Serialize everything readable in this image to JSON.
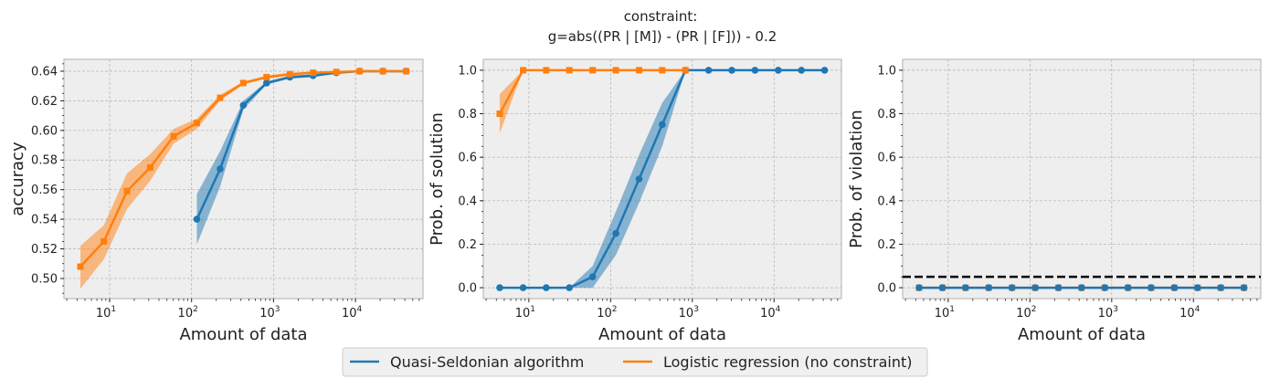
{
  "chart_data": [
    {
      "type": "line",
      "title": "",
      "xlabel": "Amount of data",
      "ylabel": "accuracy",
      "xscale": "log",
      "xlim": [
        2.77,
        66700
      ],
      "ylim": [
        0.4864,
        0.648
      ],
      "yticks": [
        0.5,
        0.52,
        0.54,
        0.56,
        0.58,
        0.6,
        0.62,
        0.64
      ],
      "ytick_labels": [
        "0.50",
        "0.52",
        "0.54",
        "0.56",
        "0.58",
        "0.60",
        "0.62",
        "0.64"
      ],
      "xticks": [
        10,
        100,
        1000,
        10000
      ],
      "xtick_labels": [
        {
          "base": "10",
          "exp": "1"
        },
        {
          "base": "10",
          "exp": "2"
        },
        {
          "base": "10",
          "exp": "3"
        },
        {
          "base": "10",
          "exp": "4"
        }
      ],
      "grid": true,
      "x": [
        4.4,
        8.5,
        16.3,
        31.3,
        60.3,
        116,
        223,
        428,
        823,
        1582,
        3040,
        5845,
        11240,
        21610,
        41550
      ],
      "series": [
        {
          "name": "Quasi-Seldonian algorithm",
          "color": "#1f77b4",
          "marker": "circle",
          "values": [
            null,
            null,
            null,
            null,
            null,
            0.54,
            0.574,
            0.617,
            0.632,
            0.636,
            0.637,
            0.639,
            0.64,
            0.64,
            0.64
          ],
          "lower": [
            null,
            null,
            null,
            null,
            null,
            0.523,
            0.562,
            0.614,
            0.631,
            0.635,
            0.636,
            0.6385,
            0.6395,
            0.6398,
            0.6398
          ],
          "upper": [
            null,
            null,
            null,
            null,
            null,
            0.557,
            0.586,
            0.62,
            0.633,
            0.637,
            0.638,
            0.6395,
            0.6405,
            0.6402,
            0.6402
          ]
        },
        {
          "name": "Logistic regression (no constraint)",
          "color": "#ff7f0e",
          "marker": "square",
          "values": [
            0.508,
            0.525,
            0.559,
            0.575,
            0.596,
            0.605,
            0.622,
            0.632,
            0.636,
            0.638,
            0.639,
            0.6395,
            0.64,
            0.64,
            0.64
          ],
          "lower": [
            0.493,
            0.513,
            0.547,
            0.566,
            0.591,
            0.601,
            0.62,
            0.631,
            0.635,
            0.637,
            0.6385,
            0.639,
            0.6397,
            0.6398,
            0.6398
          ],
          "upper": [
            0.522,
            0.536,
            0.571,
            0.584,
            0.601,
            0.608,
            0.624,
            0.633,
            0.637,
            0.639,
            0.6395,
            0.64,
            0.6403,
            0.6405,
            0.6405
          ]
        }
      ]
    },
    {
      "type": "line",
      "title": "",
      "xlabel": "Amount of data",
      "ylabel": "Prob. of solution",
      "xscale": "log",
      "xlim": [
        2.77,
        66700
      ],
      "ylim": [
        -0.05,
        1.05
      ],
      "yticks": [
        0.0,
        0.2,
        0.4,
        0.6,
        0.8,
        1.0
      ],
      "ytick_labels": [
        "0.0",
        "0.2",
        "0.4",
        "0.6",
        "0.8",
        "1.0"
      ],
      "xticks": [
        10,
        100,
        1000,
        10000
      ],
      "xtick_labels": [
        {
          "base": "10",
          "exp": "1"
        },
        {
          "base": "10",
          "exp": "2"
        },
        {
          "base": "10",
          "exp": "3"
        },
        {
          "base": "10",
          "exp": "4"
        }
      ],
      "grid": true,
      "x": [
        4.4,
        8.5,
        16.3,
        31.3,
        60.3,
        116,
        223,
        428,
        823,
        1582,
        3040,
        5845,
        11240,
        21610,
        41550
      ],
      "series": [
        {
          "name": "Quasi-Seldonian algorithm",
          "color": "#1f77b4",
          "marker": "circle",
          "values": [
            0,
            0,
            0,
            0,
            0.05,
            0.25,
            0.5,
            0.75,
            1,
            1,
            1,
            1,
            1,
            1,
            1
          ],
          "lower": [
            0,
            0,
            0,
            0,
            0.0,
            0.15,
            0.39,
            0.65,
            1,
            1,
            1,
            1,
            1,
            1,
            1
          ],
          "upper": [
            0,
            0,
            0,
            0,
            0.1,
            0.35,
            0.61,
            0.85,
            1,
            1,
            1,
            1,
            1,
            1,
            1
          ]
        },
        {
          "name": "Logistic regression (no constraint)",
          "color": "#ff7f0e",
          "marker": "square",
          "values": [
            0.8,
            1,
            1,
            1,
            1,
            1,
            1,
            1,
            1,
            null,
            null,
            null,
            null,
            null,
            null
          ],
          "lower": [
            0.71,
            1,
            1,
            1,
            1,
            1,
            1,
            1,
            1,
            null,
            null,
            null,
            null,
            null,
            null
          ],
          "upper": [
            0.89,
            1,
            1,
            1,
            1,
            1,
            1,
            1,
            1,
            null,
            null,
            null,
            null,
            null,
            null
          ]
        }
      ]
    },
    {
      "type": "line",
      "title": "",
      "xlabel": "Amount of data",
      "ylabel": "Prob. of violation",
      "xscale": "log",
      "xlim": [
        2.77,
        66700
      ],
      "ylim": [
        -0.05,
        1.05
      ],
      "yticks": [
        0.0,
        0.2,
        0.4,
        0.6,
        0.8,
        1.0
      ],
      "ytick_labels": [
        "0.0",
        "0.2",
        "0.4",
        "0.6",
        "0.8",
        "1.0"
      ],
      "xticks": [
        10,
        100,
        1000,
        10000
      ],
      "xtick_labels": [
        {
          "base": "10",
          "exp": "1"
        },
        {
          "base": "10",
          "exp": "2"
        },
        {
          "base": "10",
          "exp": "3"
        },
        {
          "base": "10",
          "exp": "4"
        }
      ],
      "grid": true,
      "hline": {
        "y": 0.05,
        "color": "#000000",
        "style": "dashed"
      },
      "x": [
        4.4,
        8.5,
        16.3,
        31.3,
        60.3,
        116,
        223,
        428,
        823,
        1582,
        3040,
        5845,
        11240,
        21610,
        41550
      ],
      "series": [
        {
          "name": "Logistic regression (no constraint)",
          "color": "#ff7f0e",
          "marker": "square",
          "values": [
            0,
            0,
            0,
            0,
            0,
            0,
            0,
            0,
            0,
            0,
            0,
            0,
            0,
            0,
            0
          ],
          "lower": [
            0,
            0,
            0,
            0,
            0,
            0,
            0,
            0,
            0,
            0,
            0,
            0,
            0,
            0,
            0
          ],
          "upper": [
            0,
            0,
            0,
            0,
            0,
            0,
            0,
            0,
            0,
            0,
            0,
            0,
            0,
            0,
            0
          ]
        },
        {
          "name": "Quasi-Seldonian algorithm",
          "color": "#1f77b4",
          "marker": "circle",
          "values": [
            0,
            0,
            0,
            0,
            0,
            0,
            0,
            0,
            0,
            0,
            0,
            0,
            0,
            0,
            0
          ],
          "lower": [
            0,
            0,
            0,
            0,
            0,
            0,
            0,
            0,
            0,
            0,
            0,
            0,
            0,
            0,
            0
          ],
          "upper": [
            0,
            0,
            0,
            0,
            0,
            0,
            0,
            0,
            0,
            0,
            0,
            0,
            0,
            0,
            0
          ]
        }
      ]
    }
  ],
  "figure": {
    "title_line1": "constraint:",
    "title_line2": "g=abs((PR | [M]) - (PR | [F])) - 0.2",
    "legend": [
      {
        "label": "Quasi-Seldonian algorithm",
        "color": "#1f77b4"
      },
      {
        "label": "Logistic regression (no constraint)",
        "color": "#ff7f0e"
      }
    ],
    "legend_position": "bottom-center"
  }
}
